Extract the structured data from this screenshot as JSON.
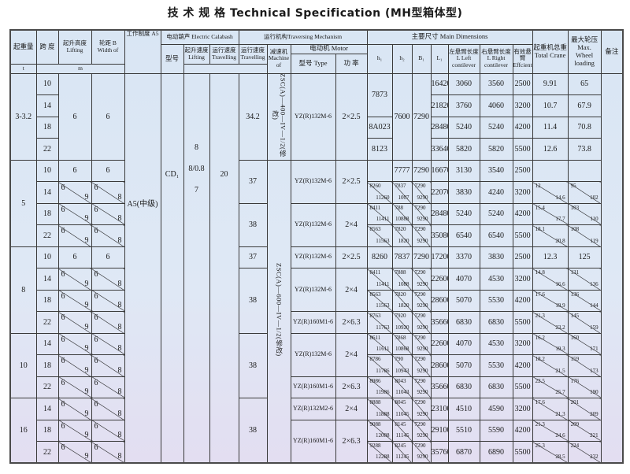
{
  "title": "技 术 规 格 Technical Specification (MH型箱体型)",
  "header": {
    "capacity": "起重量",
    "span": "跨 度",
    "lifting_height": "起升高度 Lifting",
    "width": "轮距 B Width of",
    "work_class": "工作制度 A5",
    "calabash": "电动葫芦 Electric Calabash",
    "traversing": "运行机构Traversing  Mechanism",
    "main_dims": "主要尺寸 Main Dimensions",
    "total_crane": "起重机总重 Total Crane",
    "wheel_load": "最大轮压 Max. Wheel loading",
    "remark": "备注",
    "model": "型号",
    "lifting_speed": "起升速度 Lifting",
    "travel_speed": "运行速度 Travelling",
    "travel_mech_speed": "运行速度 Travelling",
    "reducer": "减速机 Machine of",
    "motor": "电动机  Motor",
    "motor_type": "型号 Type",
    "motor_power": "功 率",
    "h1": "h₁",
    "h2": "h₂",
    "b1": "B₁",
    "l1": "L₁",
    "left": "左悬臂长度 L Left contilever",
    "right": "右悬臂长度 L Right contilever",
    "efficient": "有效悬臂 Effcient",
    "unit_t": "t",
    "unit_m": "m"
  },
  "common": {
    "work_class": "A5(中级)",
    "hoist_model": "CD₁",
    "lifting_speed": [
      "8",
      "8/0.8",
      "7"
    ],
    "travel_speed": "20"
  },
  "groups": [
    {
      "capacity": "3-3.2"
    },
    {
      "capacity": "5"
    },
    {
      "capacity": "8"
    },
    {
      "capacity": "10"
    },
    {
      "capacity": "16"
    }
  ],
  "travel_mech_speeds": [
    "34.2",
    "37",
    "38",
    "37",
    "38",
    "38",
    "38"
  ],
  "reducers": [
    "ZSC(A)—400—IV—1/2(修改)",
    "ZSC(A)—600—IV—1/2(修改)"
  ],
  "motors": [
    {
      "type": "YZ(R)132M-6",
      "power": "2×2.5"
    },
    {
      "type": "YZ(R)132M-6",
      "power": "2×2.5"
    },
    {
      "type": "YZ(R)132M-6",
      "power": "2×4"
    },
    {
      "type": "YZ(R)132M-6",
      "power": "2×2.5"
    },
    {
      "type": "YZ(R)132M-6",
      "power": "2×4"
    },
    {
      "type": "YZ(R)160M1-6",
      "power": "2×6.3"
    },
    {
      "type": "YZ(R)132M-6",
      "power": "2×4"
    },
    {
      "type": "YZ(R)160M1-6",
      "power": "2×6.3"
    },
    {
      "type": "YZ(R)132M2-6",
      "power": "2×4"
    },
    {
      "type": "YZ(R)160M1-6",
      "power": "2×6.3"
    }
  ],
  "rows": [
    {
      "span": "10",
      "lifting": "6",
      "width": "6",
      "h1": "7873",
      "h2": "7600",
      "b1": "7290",
      "l1": "16420",
      "left": "3060",
      "right": "3560",
      "eff": "2500",
      "total": "9.91",
      "wheel": "65"
    },
    {
      "span": "14",
      "l1": "21820",
      "left": "3760",
      "right": "4060",
      "eff": "3200",
      "total": "10.7",
      "wheel": "67.9"
    },
    {
      "span": "18",
      "h1": "8A023",
      "l1": "28480",
      "left": "5240",
      "right": "5240",
      "eff": "4200",
      "total": "11.4",
      "wheel": "70.8"
    },
    {
      "span": "22",
      "h1": "8123",
      "l1": "33640",
      "left": "5820",
      "right": "5820",
      "eff": "5500",
      "total": "12.6",
      "wheel": "73.8"
    },
    {
      "span": "10",
      "lifting": "6",
      "width": "6",
      "h1": "",
      "h2": "7777",
      "b1": "7290",
      "l1": "16670",
      "left": "3130",
      "right": "3540",
      "eff": "2500",
      "total": "",
      "wheel": ""
    },
    {
      "span": "14",
      "lifting": [
        "6",
        "9"
      ],
      "width": [
        "6",
        "8"
      ],
      "h1": [
        "8260",
        "11260"
      ],
      "h2": [
        "7837",
        "1007"
      ],
      "b1": [
        "7290",
        "9290"
      ],
      "l1": "22070",
      "left": "3830",
      "right": "4240",
      "eff": "3200",
      "total": [
        "12",
        "14.6"
      ],
      "wheel": [
        "95",
        "102"
      ]
    },
    {
      "span": "18",
      "lifting": [
        "6",
        "9"
      ],
      "width": [
        "6",
        "8"
      ],
      "h1": [
        "8411",
        "11411"
      ],
      "h2": [
        "788",
        "10888"
      ],
      "b1": [
        "7290",
        "9290"
      ],
      "l1": "28480",
      "left": "5240",
      "right": "5240",
      "eff": "4200",
      "total": [
        "15.4",
        "17.7"
      ],
      "wheel": [
        "103",
        "110"
      ]
    },
    {
      "span": "22",
      "lifting": [
        "6",
        "9"
      ],
      "width": [
        "6",
        "8"
      ],
      "h1": [
        "8563",
        "11563"
      ],
      "h2": [
        "7820",
        "1820"
      ],
      "b1": [
        "7290",
        "9290"
      ],
      "l1": "35080",
      "left": "6540",
      "right": "6540",
      "eff": "5500",
      "total": [
        "18.1",
        "20.8"
      ],
      "wheel": [
        "108",
        "119"
      ]
    },
    {
      "span": "10",
      "lifting": "6",
      "width": "6",
      "h1": "8260",
      "h2": "7837",
      "b1": "7290",
      "l1": "17200",
      "left": "3370",
      "right": "3830",
      "eff": "2500",
      "total": "12.3",
      "wheel": "125"
    },
    {
      "span": "14",
      "lifting": [
        "6",
        "9"
      ],
      "width": [
        "6",
        "8"
      ],
      "h1": [
        "8411",
        "11411"
      ],
      "h2": [
        "7888",
        "1088"
      ],
      "b1": [
        "7290",
        "9290"
      ],
      "l1": "22600",
      "left": "4070",
      "right": "4530",
      "eff": "3200",
      "total": [
        "14.8",
        "16.6"
      ],
      "wheel": [
        "131",
        "136"
      ]
    },
    {
      "span": "18",
      "lifting": [
        "6",
        "9"
      ],
      "width": [
        "6",
        "8"
      ],
      "h1": [
        "8563",
        "11563"
      ],
      "h2": [
        "7820",
        "1820"
      ],
      "b1": [
        "7290",
        "9290"
      ],
      "l1": "28600",
      "left": "5070",
      "right": "5530",
      "eff": "4200",
      "total": [
        "17.6",
        "19.9"
      ],
      "wheel": [
        "136",
        "144"
      ]
    },
    {
      "span": "22",
      "lifting": [
        "6",
        "9"
      ],
      "width": [
        "6",
        "8"
      ],
      "h1": [
        "8763",
        "11763"
      ],
      "h2": [
        "7920",
        "10920"
      ],
      "b1": [
        "7290",
        "9290"
      ],
      "l1": "35660",
      "left": "6830",
      "right": "6830",
      "eff": "5500",
      "total": [
        "21.3",
        "23.2"
      ],
      "wheel": [
        "145",
        "159"
      ]
    },
    {
      "span": "14",
      "lifting": [
        "6",
        "9"
      ],
      "width": [
        "6",
        "8"
      ],
      "h1": [
        "8611",
        "11611"
      ],
      "h2": [
        "7868",
        "10868"
      ],
      "b1": [
        "7290",
        "9290"
      ],
      "l1": "22600",
      "left": "4070",
      "right": "4530",
      "eff": "3200",
      "total": [
        "16.2",
        "19.3"
      ],
      "wheel": [
        "160",
        "171"
      ]
    },
    {
      "span": "18",
      "lifting": [
        "6",
        "9"
      ],
      "width": [
        "6",
        "8"
      ],
      "h1": [
        "8786",
        "11786"
      ],
      "h2": [
        "790",
        "10943"
      ],
      "b1": [
        "7290",
        "9290"
      ],
      "l1": "28600",
      "left": "5070",
      "right": "5530",
      "eff": "4200",
      "total": [
        "18.2",
        "21.5"
      ],
      "wheel": [
        "159",
        "173"
      ]
    },
    {
      "span": "22",
      "lifting": [
        "6",
        "9"
      ],
      "width": [
        "6",
        "8"
      ],
      "h1": [
        "8986",
        "11986"
      ],
      "h2": [
        "8043",
        "11043"
      ],
      "b1": [
        "7290",
        "9290"
      ],
      "l1": "35660",
      "left": "6830",
      "right": "6830",
      "eff": "5500",
      "total": [
        "22.5",
        "25.7"
      ],
      "wheel": [
        "176",
        "190"
      ]
    },
    {
      "span": "14",
      "lifting": [
        "6",
        "9"
      ],
      "width": [
        "6",
        "8"
      ],
      "h1": [
        "8888",
        "11888"
      ],
      "h2": [
        "8045",
        "11045"
      ],
      "b1": [
        "7290",
        "9290"
      ],
      "l1": "23100",
      "left": "4510",
      "right": "4590",
      "eff": "3200",
      "total": [
        "17.6",
        "21.3"
      ],
      "wheel": [
        "201",
        "209"
      ]
    },
    {
      "span": "18",
      "lifting": [
        "6",
        "9"
      ],
      "width": [
        "6",
        "8"
      ],
      "h1": [
        "9088",
        "12088"
      ],
      "h2": [
        "8145",
        "11145"
      ],
      "b1": [
        "7290",
        "9290"
      ],
      "l1": "29100",
      "left": "5510",
      "right": "5590",
      "eff": "4200",
      "total": [
        "21.3",
        "24.6"
      ],
      "wheel": [
        "209",
        "221"
      ]
    },
    {
      "span": "22",
      "lifting": [
        "6",
        "9"
      ],
      "width": [
        "6",
        "8"
      ],
      "h1": [
        "9288",
        "12288"
      ],
      "h2": [
        "8245",
        "11245"
      ],
      "b1": [
        "7290",
        "9290"
      ],
      "l1": "35760",
      "left": "6870",
      "right": "6890",
      "eff": "5500",
      "total": [
        "25.3",
        "28.5"
      ],
      "wheel": [
        "224",
        "232"
      ]
    }
  ]
}
